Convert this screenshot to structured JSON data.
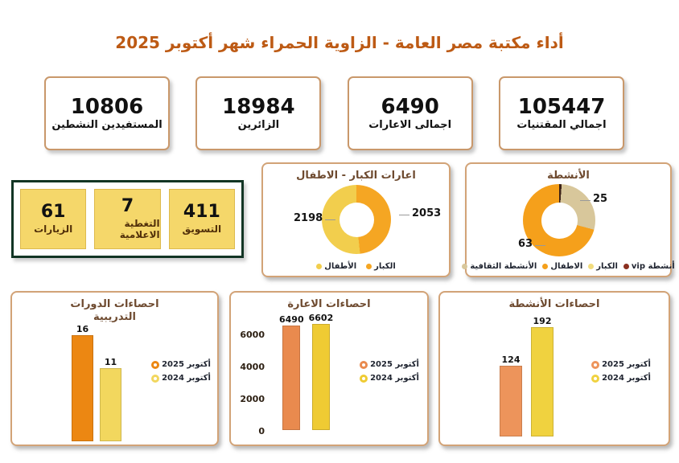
{
  "title": "أداء مكتبة مصر العامة - الزاوية الحمراء شهر أكتوبر 2025",
  "stats": [
    {
      "value": "105447",
      "label": "اجمالي المقتنيات"
    },
    {
      "value": "6490",
      "label": "اجمالى الاعارات"
    },
    {
      "value": "18984",
      "label": "الزائرين"
    },
    {
      "value": "10806",
      "label": "المستفيدين النشطين"
    }
  ],
  "kpis": [
    {
      "value": "411",
      "label": "التسويق"
    },
    {
      "value": "7",
      "label": "التغطية الاعلامية"
    },
    {
      "value": "61",
      "label": "الزيارات"
    }
  ],
  "colors": {
    "title": "#BD5A14",
    "stat_box_border": "#C9986B",
    "kpi_fill": "#F5D76A",
    "kpi_container_border": "#123524",
    "panel_border": "#D2A377"
  },
  "chart_data": [
    {
      "id": "loans-donut",
      "type": "pie",
      "title": "اعارات الكبار - الاطفال",
      "segments": [
        {
          "label": "الكبار",
          "value": 2053,
          "color": "#F5A623"
        },
        {
          "label": "الأطفال",
          "value": 2198,
          "color": "#F2CE4D"
        }
      ],
      "legend": [
        {
          "label": "الكبار",
          "color": "#F5A623"
        },
        {
          "label": "الأطفال",
          "color": "#F2CE4D"
        }
      ],
      "legend_position": "bottom"
    },
    {
      "id": "activities-donut",
      "type": "pie",
      "title": "الأنشطة",
      "segments": [
        {
          "label": "أنشطة vip",
          "value": 1,
          "color": "#3D2217"
        },
        {
          "label": "الأنشطة الثقافية",
          "value": 25,
          "color": "#D8C79B"
        },
        {
          "label": "الاطفال",
          "value": 63,
          "color": "#F5A01B"
        }
      ],
      "legend": [
        {
          "label": "أنشطة vip",
          "color": "#8B3020"
        },
        {
          "label": "الكبار",
          "color": "#F2DC7E"
        },
        {
          "label": "الاطفال",
          "color": "#F5A01B"
        },
        {
          "label": "الأنشطة الثقافية",
          "color": "#D8C79B"
        }
      ],
      "legend_position": "bottom"
    },
    {
      "id": "training-bar",
      "type": "bar",
      "title": "احصاءات الدورات التدريبية",
      "series": [
        {
          "name": "أكتوبر 2025",
          "value": 16,
          "color": "#EC8712"
        },
        {
          "name": "أكتوبر 2024",
          "value": 11,
          "color": "#F2D75E"
        }
      ],
      "ylim": [
        0,
        17
      ],
      "yticks": [],
      "legend_position": "right"
    },
    {
      "id": "loans-bar",
      "type": "bar",
      "title": "احصاءات الاعارة",
      "series": [
        {
          "name": "أكتوبر 2025",
          "value": 6490,
          "color": "#E98A4E"
        },
        {
          "name": "أكتوبر 2024",
          "value": 6602,
          "color": "#EFCB33"
        }
      ],
      "ylim": [
        0,
        7000
      ],
      "yticks": [
        0,
        2000,
        4000,
        6000
      ],
      "legend_position": "right"
    },
    {
      "id": "activities-bar",
      "type": "bar",
      "title": "احصاءات الأنشطة",
      "series": [
        {
          "name": "أكتوبر 2025",
          "value": 124,
          "color": "#ED945B"
        },
        {
          "name": "أكتوبر 2024",
          "value": 192,
          "color": "#F0D23F"
        }
      ],
      "ylim": [
        0,
        205
      ],
      "yticks": [],
      "legend_position": "right"
    }
  ]
}
